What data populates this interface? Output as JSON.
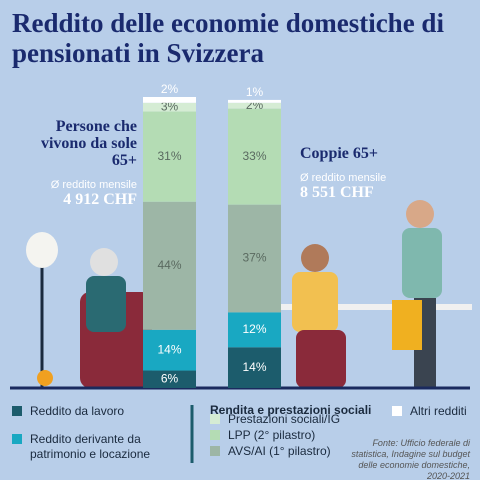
{
  "chart_data": {
    "type": "stacked-bar",
    "title": "Reddito delle economie domestiche di pensionati in Svizzera",
    "categories": [
      "Persone che vivono da sole 65+",
      "Coppie 65+"
    ],
    "income_notes": [
      {
        "label": "Ø reddito mensile",
        "amount": "4 912 CHF"
      },
      {
        "label": "Ø reddito mensile",
        "amount": "8 551 CHF"
      }
    ],
    "ylim": [
      0,
      100
    ],
    "series": [
      {
        "name": "Reddito da lavoro",
        "color": "#1c5c6c",
        "values": [
          6,
          14
        ],
        "value_labels": [
          "6%",
          "14%"
        ]
      },
      {
        "name": "Reddito derivante da patrimonio e locazione",
        "color": "#19a8c2",
        "values": [
          14,
          12
        ],
        "value_labels": [
          "14%",
          "12%"
        ]
      },
      {
        "name": "AVS/AI (1° pilastro)",
        "color": "#9db6a6",
        "values": [
          44,
          37
        ],
        "value_labels": [
          "44%",
          "37%"
        ]
      },
      {
        "name": "LPP (2° pilastro)",
        "color": "#b4dcb4",
        "values": [
          31,
          33
        ],
        "value_labels": [
          "31%",
          "33%"
        ]
      },
      {
        "name": "Prestazioni sociali/IG",
        "color": "#d5ecd4",
        "values": [
          3,
          2
        ],
        "value_labels": [
          "3%",
          "2%"
        ]
      },
      {
        "name": "Altri redditi",
        "color": "#ffffff",
        "values": [
          2,
          1
        ],
        "value_labels": [
          "2%",
          "1%"
        ]
      }
    ],
    "legend_group_title": "Rendita e prestazioni sociali",
    "source": "Fonte: Ufficio federale di statistica, Indagine sul budget delle economie domestiche, 2020-2021"
  }
}
